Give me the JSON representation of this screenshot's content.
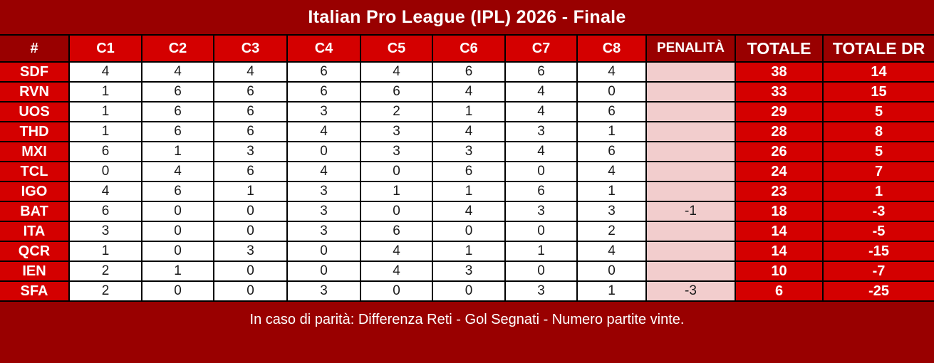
{
  "title": "Italian Pro League (IPL) 2026 - Finale",
  "footer_note": "In caso di parità: Differenza Reti - Gol Segnati - Numero partite vinte.",
  "colors": {
    "title_bar_background": "#990000",
    "header_accent_background": "#D40000",
    "penalty_cell_background": "#F2CDCD",
    "grid_border": "#000000",
    "header_text": "#FFFFFF",
    "score_text": "#1A1A1A"
  },
  "chart_data": {
    "type": "table",
    "title": "Italian Pro League (IPL) 2026 - Finale",
    "note": "In caso di parità: Differenza Reti - Gol Segnati - Numero partite vinte.",
    "columns": [
      "#",
      "C1",
      "C2",
      "C3",
      "C4",
      "C5",
      "C6",
      "C7",
      "C8",
      "PENALITÀ",
      "TOTALE",
      "TOTALE DR"
    ],
    "rows": [
      {
        "team": "SDF",
        "scores": [
          4,
          4,
          4,
          6,
          4,
          6,
          6,
          4
        ],
        "penalty": "",
        "totale": 38,
        "totale_dr": 14
      },
      {
        "team": "RVN",
        "scores": [
          1,
          6,
          6,
          6,
          6,
          4,
          4,
          0
        ],
        "penalty": "",
        "totale": 33,
        "totale_dr": 15
      },
      {
        "team": "UOS",
        "scores": [
          1,
          6,
          6,
          3,
          2,
          1,
          4,
          6
        ],
        "penalty": "",
        "totale": 29,
        "totale_dr": 5
      },
      {
        "team": "THD",
        "scores": [
          1,
          6,
          6,
          4,
          3,
          4,
          3,
          1
        ],
        "penalty": "",
        "totale": 28,
        "totale_dr": 8
      },
      {
        "team": "MXI",
        "scores": [
          6,
          1,
          3,
          0,
          3,
          3,
          4,
          6
        ],
        "penalty": "",
        "totale": 26,
        "totale_dr": 5
      },
      {
        "team": "TCL",
        "scores": [
          0,
          4,
          6,
          4,
          0,
          6,
          0,
          4
        ],
        "penalty": "",
        "totale": 24,
        "totale_dr": 7
      },
      {
        "team": "IGO",
        "scores": [
          4,
          6,
          1,
          3,
          1,
          1,
          6,
          1
        ],
        "penalty": "",
        "totale": 23,
        "totale_dr": 1
      },
      {
        "team": "BAT",
        "scores": [
          6,
          0,
          0,
          3,
          0,
          4,
          3,
          3
        ],
        "penalty": "-1",
        "totale": 18,
        "totale_dr": -3
      },
      {
        "team": "ITA",
        "scores": [
          3,
          0,
          0,
          3,
          6,
          0,
          0,
          2
        ],
        "penalty": "",
        "totale": 14,
        "totale_dr": -5
      },
      {
        "team": "QCR",
        "scores": [
          1,
          0,
          3,
          0,
          4,
          1,
          1,
          4
        ],
        "penalty": "",
        "totale": 14,
        "totale_dr": -15
      },
      {
        "team": "IEN",
        "scores": [
          2,
          1,
          0,
          0,
          4,
          3,
          0,
          0
        ],
        "penalty": "",
        "totale": 10,
        "totale_dr": -7
      },
      {
        "team": "SFA",
        "scores": [
          2,
          0,
          0,
          3,
          0,
          0,
          3,
          1
        ],
        "penalty": "-3",
        "totale": 6,
        "totale_dr": -25
      }
    ]
  }
}
